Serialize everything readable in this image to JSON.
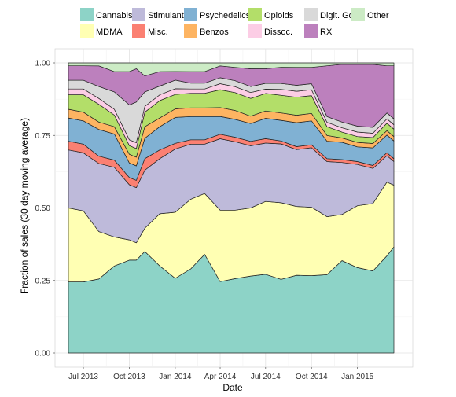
{
  "chart_data": {
    "type": "area",
    "stacked": true,
    "normalized": true,
    "xlabel": "Date",
    "ylabel": "Fraction of sales (30 day moving average)",
    "ylim": [
      0,
      1
    ],
    "xlim": [
      "2013-06-01",
      "2015-04-01"
    ],
    "grid": true,
    "legend_position": "top",
    "x_ticks": [
      "Jul 2013",
      "Oct 2013",
      "Jan 2014",
      "Apr 2014",
      "Jul 2014",
      "Oct 2014",
      "Jan 2015"
    ],
    "y_ticks": [
      "0.00",
      "0.25",
      "0.50",
      "0.75",
      "1.00"
    ],
    "legend": {
      "row1": [
        "Cannabis",
        "Stimulants",
        "Psychedelics",
        "Opioids",
        "Digit. Gds",
        "Other"
      ],
      "row2": [
        "MDMA",
        "Misc.",
        "Benzos",
        "Dissoc.",
        "RX"
      ]
    },
    "x": [
      "2013-06-01",
      "2013-07-01",
      "2013-08-01",
      "2013-09-01",
      "2013-10-01",
      "2013-10-15",
      "2013-11-01",
      "2013-12-01",
      "2014-01-01",
      "2014-02-01",
      "2014-03-01",
      "2014-04-01",
      "2014-05-01",
      "2014-06-01",
      "2014-07-01",
      "2014-08-01",
      "2014-09-01",
      "2014-10-01",
      "2014-11-01",
      "2014-12-01",
      "2015-01-01",
      "2015-02-01",
      "2015-03-01",
      "2015-03-15"
    ],
    "series": [
      {
        "name": "Cannabis",
        "color": "#8dd3c7",
        "values": [
          0.245,
          0.245,
          0.25,
          0.3,
          0.32,
          0.32,
          0.35,
          0.3,
          0.26,
          0.29,
          0.34,
          0.24,
          0.25,
          0.26,
          0.27,
          0.25,
          0.26,
          0.26,
          0.27,
          0.32,
          0.29,
          0.28,
          0.33,
          0.36
        ]
      },
      {
        "name": "MDMA",
        "color": "#ffffb3",
        "values": [
          0.255,
          0.245,
          0.16,
          0.1,
          0.07,
          0.06,
          0.08,
          0.18,
          0.23,
          0.24,
          0.21,
          0.24,
          0.23,
          0.23,
          0.25,
          0.26,
          0.23,
          0.23,
          0.2,
          0.16,
          0.21,
          0.23,
          0.25,
          0.21
        ]
      },
      {
        "name": "Stimulants",
        "color": "#bebada",
        "values": [
          0.2,
          0.2,
          0.23,
          0.24,
          0.19,
          0.19,
          0.2,
          0.19,
          0.22,
          0.19,
          0.17,
          0.24,
          0.23,
          0.21,
          0.2,
          0.2,
          0.19,
          0.2,
          0.19,
          0.18,
          0.14,
          0.12,
          0.09,
          0.08
        ]
      },
      {
        "name": "Misc.",
        "color": "#fb8072",
        "values": [
          0.03,
          0.03,
          0.025,
          0.025,
          0.025,
          0.025,
          0.04,
          0.03,
          0.02,
          0.015,
          0.015,
          0.015,
          0.015,
          0.015,
          0.015,
          0.01,
          0.01,
          0.01,
          0.01,
          0.01,
          0.01,
          0.01,
          0.01,
          0.01
        ]
      },
      {
        "name": "Psychedelics",
        "color": "#80b1d3",
        "values": [
          0.08,
          0.08,
          0.09,
          0.09,
          0.05,
          0.05,
          0.07,
          0.08,
          0.09,
          0.08,
          0.08,
          0.06,
          0.06,
          0.06,
          0.07,
          0.07,
          0.08,
          0.08,
          0.06,
          0.06,
          0.05,
          0.06,
          0.06,
          0.06
        ]
      },
      {
        "name": "Benzos",
        "color": "#fdb462",
        "values": [
          0.03,
          0.03,
          0.025,
          0.025,
          0.03,
          0.03,
          0.04,
          0.03,
          0.03,
          0.03,
          0.03,
          0.03,
          0.03,
          0.025,
          0.025,
          0.025,
          0.025,
          0.025,
          0.02,
          0.015,
          0.015,
          0.015,
          0.015,
          0.015
        ]
      },
      {
        "name": "Opioids",
        "color": "#b3de69",
        "values": [
          0.05,
          0.06,
          0.06,
          0.04,
          0.03,
          0.03,
          0.05,
          0.06,
          0.05,
          0.05,
          0.05,
          0.06,
          0.06,
          0.06,
          0.06,
          0.06,
          0.06,
          0.06,
          0.03,
          0.02,
          0.02,
          0.02,
          0.025,
          0.025
        ]
      },
      {
        "name": "Dissoc.",
        "color": "#fccde5",
        "values": [
          0.02,
          0.02,
          0.02,
          0.02,
          0.02,
          0.02,
          0.02,
          0.02,
          0.02,
          0.015,
          0.015,
          0.02,
          0.02,
          0.02,
          0.015,
          0.02,
          0.02,
          0.02,
          0.015,
          0.015,
          0.015,
          0.015,
          0.015,
          0.015
        ]
      },
      {
        "name": "Digit. Gds",
        "color": "#d9d9d9",
        "values": [
          0.03,
          0.03,
          0.04,
          0.06,
          0.12,
          0.14,
          0.05,
          0.03,
          0.03,
          0.02,
          0.02,
          0.02,
          0.02,
          0.02,
          0.02,
          0.02,
          0.02,
          0.02,
          0.02,
          0.02,
          0.02,
          0.02,
          0.02,
          0.02
        ]
      },
      {
        "name": "RX",
        "color": "#bc80bd",
        "values": [
          0.05,
          0.05,
          0.07,
          0.07,
          0.115,
          0.115,
          0.055,
          0.05,
          0.03,
          0.04,
          0.04,
          0.04,
          0.045,
          0.06,
          0.05,
          0.055,
          0.06,
          0.055,
          0.175,
          0.2,
          0.21,
          0.215,
          0.16,
          0.18
        ]
      },
      {
        "name": "Other",
        "color": "#ccebc5",
        "values": [
          0.01,
          0.01,
          0.01,
          0.03,
          0.03,
          0.02,
          0.045,
          0.03,
          0.03,
          0.03,
          0.03,
          0.01,
          0.015,
          0.02,
          0.02,
          0.015,
          0.015,
          0.015,
          0.01,
          0.005,
          0.005,
          0.005,
          0.01,
          0.01
        ]
      }
    ]
  }
}
